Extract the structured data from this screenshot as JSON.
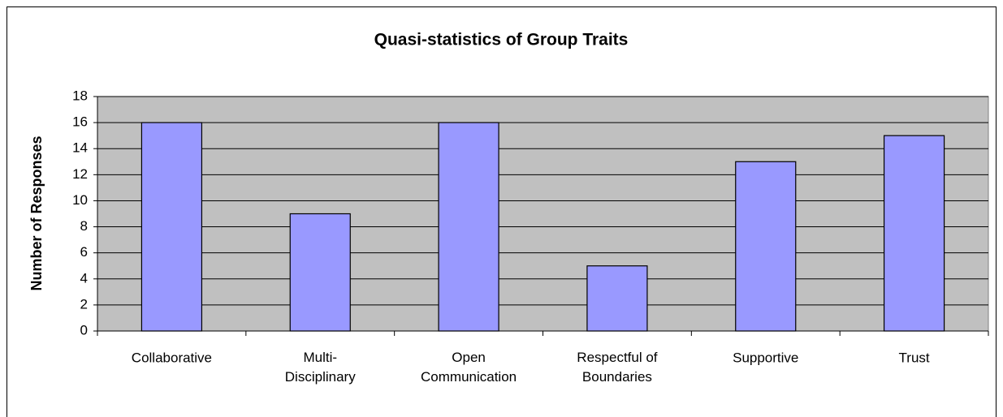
{
  "chart_data": {
    "type": "bar",
    "title": "Quasi-statistics of Group Traits",
    "y_label": "Number of Responses",
    "categories": [
      "Collaborative",
      "Multi-\nDisciplinary",
      "Open\nCommunication",
      "Respectful of\nBoundaries",
      "Supportive",
      "Trust"
    ],
    "values": [
      16,
      9,
      16,
      5,
      13,
      15
    ],
    "color": "#9999ff",
    "ylim": [
      0,
      18
    ],
    "yticks": [
      0,
      2,
      4,
      6,
      8,
      10,
      12,
      14,
      16,
      18
    ],
    "grid": true
  }
}
